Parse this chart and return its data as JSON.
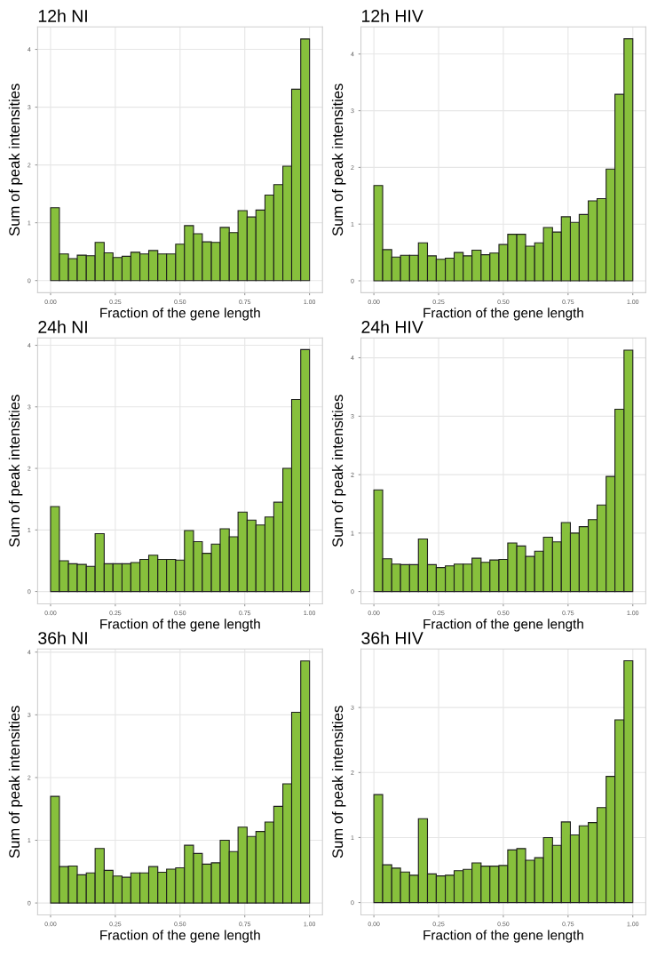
{
  "chart_data": [
    {
      "type": "histogram",
      "title": "12h NI",
      "xlabel": "Fraction of the gene length",
      "ylabel": "Sum of peak intensities",
      "color": "#87c03c",
      "grid": true,
      "bins": [
        0,
        0.034,
        0.069,
        0.103,
        0.138,
        0.172,
        0.207,
        0.241,
        0.276,
        0.31,
        0.345,
        0.379,
        0.414,
        0.448,
        0.483,
        0.517,
        0.552,
        0.586,
        0.621,
        0.655,
        0.69,
        0.724,
        0.759,
        0.793,
        0.828,
        0.862,
        0.897,
        0.931,
        0.966,
        1
      ],
      "values": [
        1.26,
        0.46,
        0.38,
        0.44,
        0.43,
        0.66,
        0.48,
        0.4,
        0.42,
        0.49,
        0.46,
        0.52,
        0.46,
        0.46,
        0.63,
        0.95,
        0.81,
        0.67,
        0.66,
        0.92,
        0.83,
        1.21,
        1.1,
        1.22,
        1.48,
        1.66,
        1.98,
        3.31,
        4.18
      ],
      "xlim": [
        -0.05,
        1.05
      ],
      "xticks": [
        {
          "value": 0,
          "label": "0.00"
        },
        {
          "value": 0.25,
          "label": "0.25"
        },
        {
          "value": 0.5,
          "label": "0.50"
        },
        {
          "value": 0.75,
          "label": "0.75"
        },
        {
          "value": 1,
          "label": "1.00"
        }
      ],
      "ylim": [
        -0.21,
        4.39
      ],
      "yticks": [
        0,
        1,
        2,
        3,
        4
      ]
    },
    {
      "type": "histogram",
      "title": "12h HIV",
      "xlabel": "Fraction of the gene length",
      "ylabel": "Sum of peak intensities",
      "color": "#87c03c",
      "grid": true,
      "bins": [
        0,
        0.034,
        0.069,
        0.103,
        0.138,
        0.172,
        0.207,
        0.241,
        0.276,
        0.31,
        0.345,
        0.379,
        0.414,
        0.448,
        0.483,
        0.517,
        0.552,
        0.586,
        0.621,
        0.655,
        0.69,
        0.724,
        0.759,
        0.793,
        0.828,
        0.862,
        0.897,
        0.931,
        0.966,
        1
      ],
      "values": [
        1.68,
        0.55,
        0.42,
        0.45,
        0.45,
        0.67,
        0.44,
        0.38,
        0.4,
        0.5,
        0.44,
        0.54,
        0.46,
        0.49,
        0.64,
        0.82,
        0.82,
        0.61,
        0.67,
        0.94,
        0.86,
        1.13,
        1.03,
        1.17,
        1.41,
        1.45,
        1.97,
        3.29,
        4.27
      ],
      "xlim": [
        -0.05,
        1.05
      ],
      "xticks": [
        {
          "value": 0,
          "label": "0.00"
        },
        {
          "value": 0.25,
          "label": "0.25"
        },
        {
          "value": 0.5,
          "label": "0.50"
        },
        {
          "value": 0.75,
          "label": "0.75"
        },
        {
          "value": 1,
          "label": "1.00"
        }
      ],
      "ylim": [
        -0.21,
        4.48
      ],
      "yticks": [
        0,
        1,
        2,
        3,
        4
      ]
    },
    {
      "type": "histogram",
      "title": "24h NI",
      "xlabel": "Fraction of the gene length",
      "ylabel": "Sum of peak intensities",
      "color": "#87c03c",
      "grid": true,
      "bins": [
        0,
        0.034,
        0.069,
        0.103,
        0.138,
        0.172,
        0.207,
        0.241,
        0.276,
        0.31,
        0.345,
        0.379,
        0.414,
        0.448,
        0.483,
        0.517,
        0.552,
        0.586,
        0.621,
        0.655,
        0.69,
        0.724,
        0.759,
        0.793,
        0.828,
        0.862,
        0.897,
        0.931,
        0.966,
        1
      ],
      "values": [
        1.38,
        0.5,
        0.45,
        0.44,
        0.41,
        0.94,
        0.45,
        0.45,
        0.45,
        0.47,
        0.52,
        0.59,
        0.52,
        0.52,
        0.51,
        0.99,
        0.81,
        0.62,
        0.77,
        1.02,
        0.89,
        1.29,
        1.16,
        1.08,
        1.21,
        1.45,
        2.0,
        3.12,
        3.93
      ],
      "xlim": [
        -0.05,
        1.05
      ],
      "xticks": [
        {
          "value": 0,
          "label": "0.00"
        },
        {
          "value": 0.25,
          "label": "0.25"
        },
        {
          "value": 0.5,
          "label": "0.50"
        },
        {
          "value": 0.75,
          "label": "0.75"
        },
        {
          "value": 1,
          "label": "1.00"
        }
      ],
      "ylim": [
        -0.2,
        4.12
      ],
      "yticks": [
        0,
        1,
        2,
        3,
        4
      ]
    },
    {
      "type": "histogram",
      "title": "24h HIV",
      "xlabel": "Fraction of the gene length",
      "ylabel": "Sum of peak intensities",
      "color": "#87c03c",
      "grid": true,
      "bins": [
        0,
        0.034,
        0.069,
        0.103,
        0.138,
        0.172,
        0.207,
        0.241,
        0.276,
        0.31,
        0.345,
        0.379,
        0.414,
        0.448,
        0.483,
        0.517,
        0.552,
        0.586,
        0.621,
        0.655,
        0.69,
        0.724,
        0.759,
        0.793,
        0.828,
        0.862,
        0.897,
        0.931,
        0.966,
        1
      ],
      "values": [
        1.74,
        0.56,
        0.47,
        0.46,
        0.46,
        0.9,
        0.46,
        0.41,
        0.44,
        0.47,
        0.47,
        0.57,
        0.5,
        0.54,
        0.55,
        0.83,
        0.78,
        0.6,
        0.69,
        0.93,
        0.85,
        1.18,
        1.0,
        1.11,
        1.23,
        1.48,
        1.97,
        3.12,
        4.13
      ],
      "xlim": [
        -0.05,
        1.05
      ],
      "xticks": [
        {
          "value": 0,
          "label": "0.00"
        },
        {
          "value": 0.25,
          "label": "0.25"
        },
        {
          "value": 0.5,
          "label": "0.50"
        },
        {
          "value": 0.75,
          "label": "0.75"
        },
        {
          "value": 1,
          "label": "1.00"
        }
      ],
      "ylim": [
        -0.21,
        4.34
      ],
      "yticks": [
        0,
        1,
        2,
        3,
        4
      ]
    },
    {
      "type": "histogram",
      "title": "36h NI",
      "xlabel": "Fraction of the gene length",
      "ylabel": "Sum of peak intensities",
      "color": "#87c03c",
      "grid": true,
      "bins": [
        0,
        0.034,
        0.069,
        0.103,
        0.138,
        0.172,
        0.207,
        0.241,
        0.276,
        0.31,
        0.345,
        0.379,
        0.414,
        0.448,
        0.483,
        0.517,
        0.552,
        0.586,
        0.621,
        0.655,
        0.69,
        0.724,
        0.759,
        0.793,
        0.828,
        0.862,
        0.897,
        0.931,
        0.966,
        1
      ],
      "values": [
        1.7,
        0.58,
        0.59,
        0.45,
        0.48,
        0.87,
        0.52,
        0.43,
        0.41,
        0.48,
        0.48,
        0.58,
        0.49,
        0.54,
        0.56,
        0.92,
        0.79,
        0.62,
        0.64,
        1.0,
        0.82,
        1.21,
        1.06,
        1.14,
        1.29,
        1.54,
        1.9,
        3.04,
        3.86
      ],
      "xlim": [
        -0.05,
        1.05
      ],
      "xticks": [
        {
          "value": 0,
          "label": "0.00"
        },
        {
          "value": 0.25,
          "label": "0.25"
        },
        {
          "value": 0.5,
          "label": "0.50"
        },
        {
          "value": 0.75,
          "label": "0.75"
        },
        {
          "value": 1,
          "label": "1.00"
        }
      ],
      "ylim": [
        -0.19,
        4.05
      ],
      "yticks": [
        0,
        1,
        2,
        3,
        4
      ]
    },
    {
      "type": "histogram",
      "title": "36h HIV",
      "xlabel": "Fraction of the gene length",
      "ylabel": "Sum of peak intensities",
      "color": "#87c03c",
      "grid": true,
      "bins": [
        0,
        0.034,
        0.069,
        0.103,
        0.138,
        0.172,
        0.207,
        0.241,
        0.276,
        0.31,
        0.345,
        0.379,
        0.414,
        0.448,
        0.483,
        0.517,
        0.552,
        0.586,
        0.621,
        0.655,
        0.69,
        0.724,
        0.759,
        0.793,
        0.828,
        0.862,
        0.897,
        0.931,
        0.966,
        1
      ],
      "values": [
        1.66,
        0.58,
        0.53,
        0.47,
        0.42,
        1.29,
        0.44,
        0.41,
        0.42,
        0.49,
        0.51,
        0.61,
        0.56,
        0.56,
        0.57,
        0.81,
        0.83,
        0.65,
        0.69,
        1.0,
        0.88,
        1.24,
        1.04,
        1.18,
        1.23,
        1.46,
        1.94,
        2.81,
        3.72
      ],
      "xlim": [
        -0.05,
        1.05
      ],
      "xticks": [
        {
          "value": 0,
          "label": "0.00"
        },
        {
          "value": 0.25,
          "label": "0.25"
        },
        {
          "value": 0.5,
          "label": "0.50"
        },
        {
          "value": 0.75,
          "label": "0.75"
        },
        {
          "value": 1,
          "label": "1.00"
        }
      ],
      "ylim": [
        -0.19,
        3.9
      ],
      "yticks": [
        0,
        1,
        2,
        3
      ]
    }
  ]
}
